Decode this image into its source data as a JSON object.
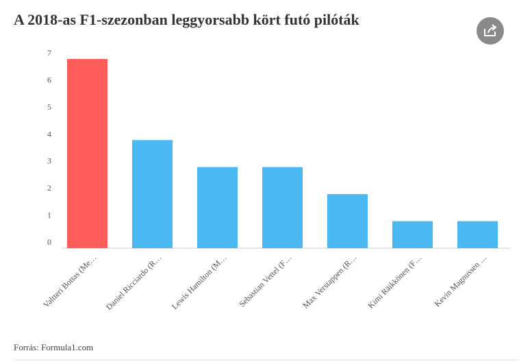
{
  "chart_data": {
    "type": "bar",
    "title": "A 2018-as F1-szezonban leggyorsabb kört futó pilóták",
    "categories": [
      "Valtteri Bottas (Me…",
      "Daniel Ricciardo (R…",
      "Lewis Hamilton (M…",
      "Sebastian Vettel (F…",
      "Max Verstappen (R…",
      "Kimi Räikkönen (F…",
      "Kevin Magnussen …"
    ],
    "values": [
      7,
      4,
      3,
      3,
      2,
      1,
      1
    ],
    "colors": [
      "#ff5c5c",
      "#4cb8f2",
      "#4cb8f2",
      "#4cb8f2",
      "#4cb8f2",
      "#4cb8f2",
      "#4cb8f2"
    ],
    "ylim": [
      0,
      7
    ],
    "yticks": [
      0,
      1,
      2,
      3,
      4,
      5,
      6,
      7
    ],
    "source": "Forrás: Formula1.com"
  }
}
